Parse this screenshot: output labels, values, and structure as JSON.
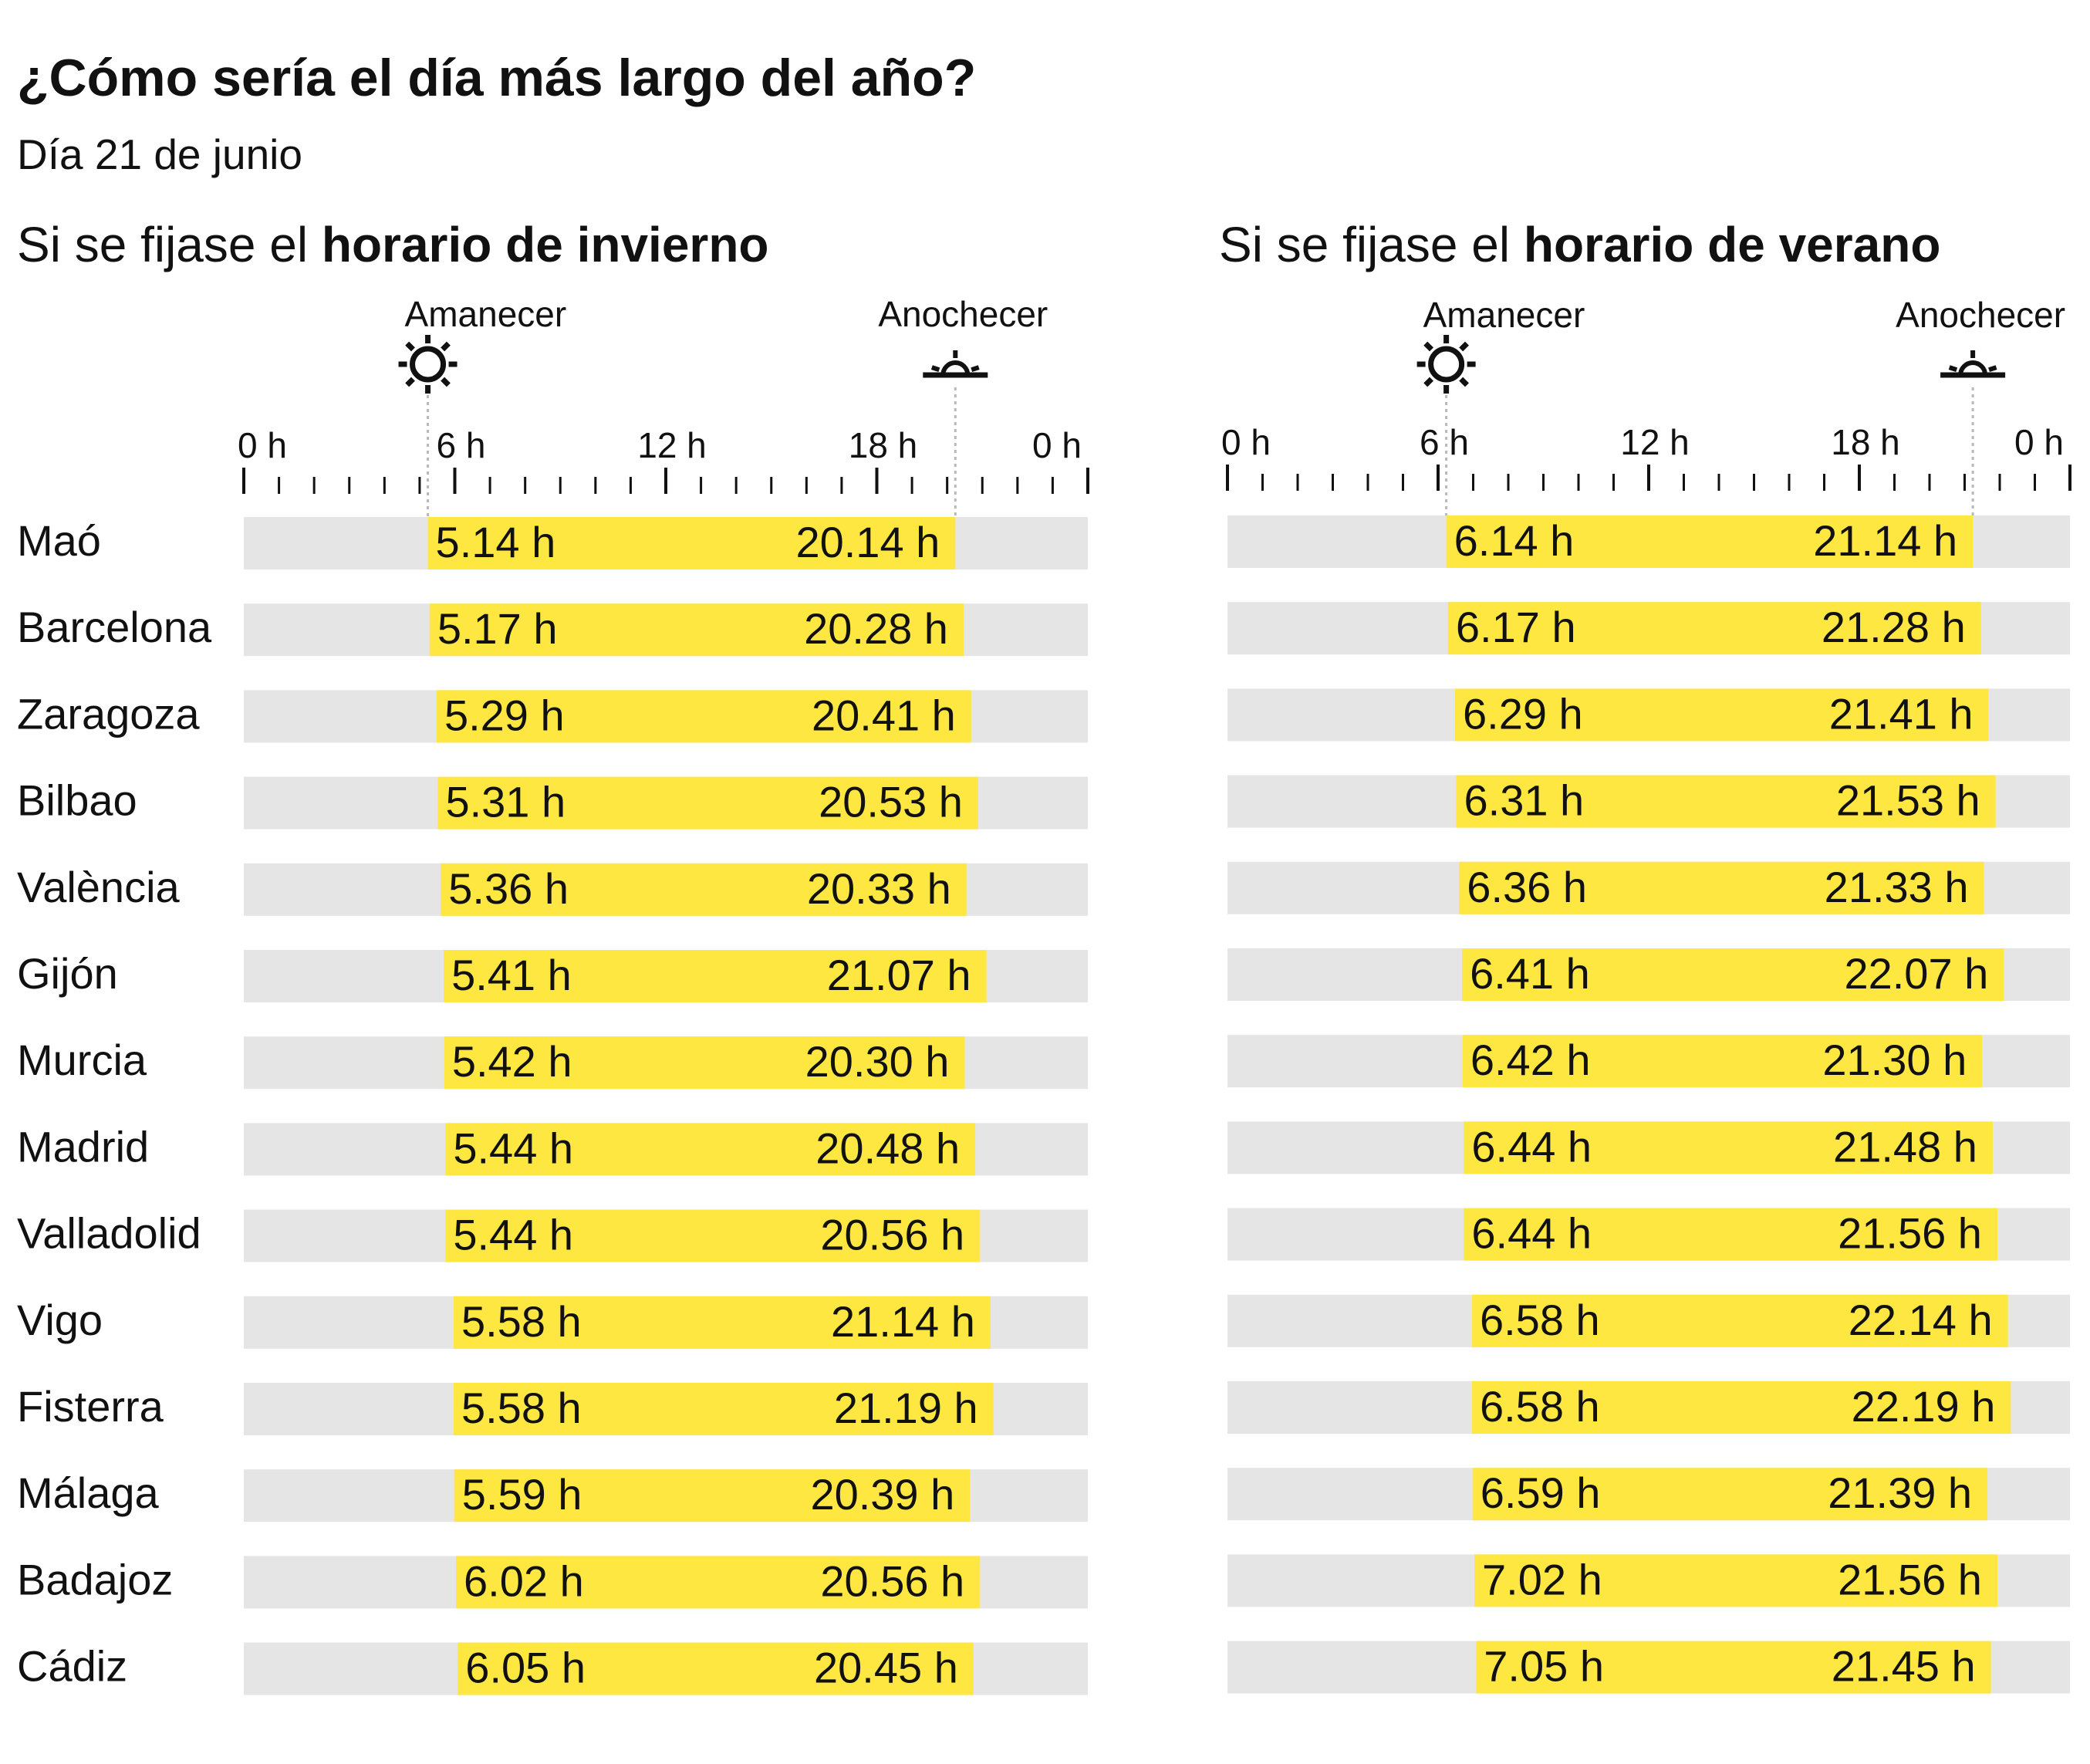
{
  "title": "¿Cómo sería el día más largo del año?",
  "subtitle": "Día 21 de junio",
  "panels": {
    "winter": {
      "prefix": "Si se fijase el ",
      "bold": "horario de invierno"
    },
    "summer": {
      "prefix": "Si se fijase el ",
      "bold": "horario de verano"
    }
  },
  "labels": {
    "sunrise": "Amanecer",
    "sunset": "Anochecer"
  },
  "icons": {
    "sunrise": "sun-icon",
    "sunset": "sunset-icon"
  },
  "colors": {
    "day": "#FFE741",
    "night": "#E5E5E5",
    "text": "#111111"
  },
  "chart_data": [
    {
      "type": "bar",
      "title": "Si se fijase el horario de invierno",
      "xaxis": {
        "ticks": [
          "0 h",
          "6 h",
          "12 h",
          "18 h",
          "0 h"
        ],
        "range": [
          0,
          24
        ],
        "minor_step_hours": 1
      },
      "reference_markers": {
        "sunrise": "5.14 h",
        "sunset": "20.14 h"
      },
      "categories": [
        "Maó",
        "Barcelona",
        "Zaragoza",
        "Bilbao",
        "València",
        "Gijón",
        "Murcia",
        "Madrid",
        "Valladolid",
        "Vigo",
        "Fisterra",
        "Málaga",
        "Badajoz",
        "Cádiz"
      ],
      "series": [
        {
          "name": "Amanecer",
          "values": [
            "5.14 h",
            "5.17 h",
            "5.29 h",
            "5.31 h",
            "5.36 h",
            "5.41 h",
            "5.42 h",
            "5.44 h",
            "5.44 h",
            "5.58 h",
            "5.58 h",
            "5.59 h",
            "6.02 h",
            "6.05 h"
          ]
        },
        {
          "name": "Anochecer",
          "values": [
            "20.14 h",
            "20.28 h",
            "20.41 h",
            "20.53 h",
            "20.33 h",
            "21.07 h",
            "20.30 h",
            "20.48 h",
            "20.56 h",
            "21.14 h",
            "21.19 h",
            "20.39 h",
            "20.56 h",
            "20.45 h"
          ]
        }
      ]
    },
    {
      "type": "bar",
      "title": "Si se fijase el horario de verano",
      "xaxis": {
        "ticks": [
          "0 h",
          "6 h",
          "12 h",
          "18 h",
          "0 h"
        ],
        "range": [
          0,
          24
        ],
        "minor_step_hours": 1
      },
      "reference_markers": {
        "sunrise": "6.14 h",
        "sunset": "21.14 h"
      },
      "categories": [
        "Maó",
        "Barcelona",
        "Zaragoza",
        "Bilbao",
        "València",
        "Gijón",
        "Murcia",
        "Madrid",
        "Valladolid",
        "Vigo",
        "Fisterra",
        "Málaga",
        "Badajoz",
        "Cádiz"
      ],
      "series": [
        {
          "name": "Amanecer",
          "values": [
            "6.14 h",
            "6.17 h",
            "6.29 h",
            "6.31 h",
            "6.36 h",
            "6.41 h",
            "6.42 h",
            "6.44 h",
            "6.44 h",
            "6.58 h",
            "6.58 h",
            "6.59 h",
            "7.02 h",
            "7.05 h"
          ]
        },
        {
          "name": "Anochecer",
          "values": [
            "21.14 h",
            "21.28 h",
            "21.41 h",
            "21.53 h",
            "21.33 h",
            "22.07 h",
            "21.30 h",
            "21.48 h",
            "21.56 h",
            "22.14 h",
            "22.19 h",
            "21.39 h",
            "21.56 h",
            "21.45 h"
          ]
        }
      ]
    }
  ]
}
